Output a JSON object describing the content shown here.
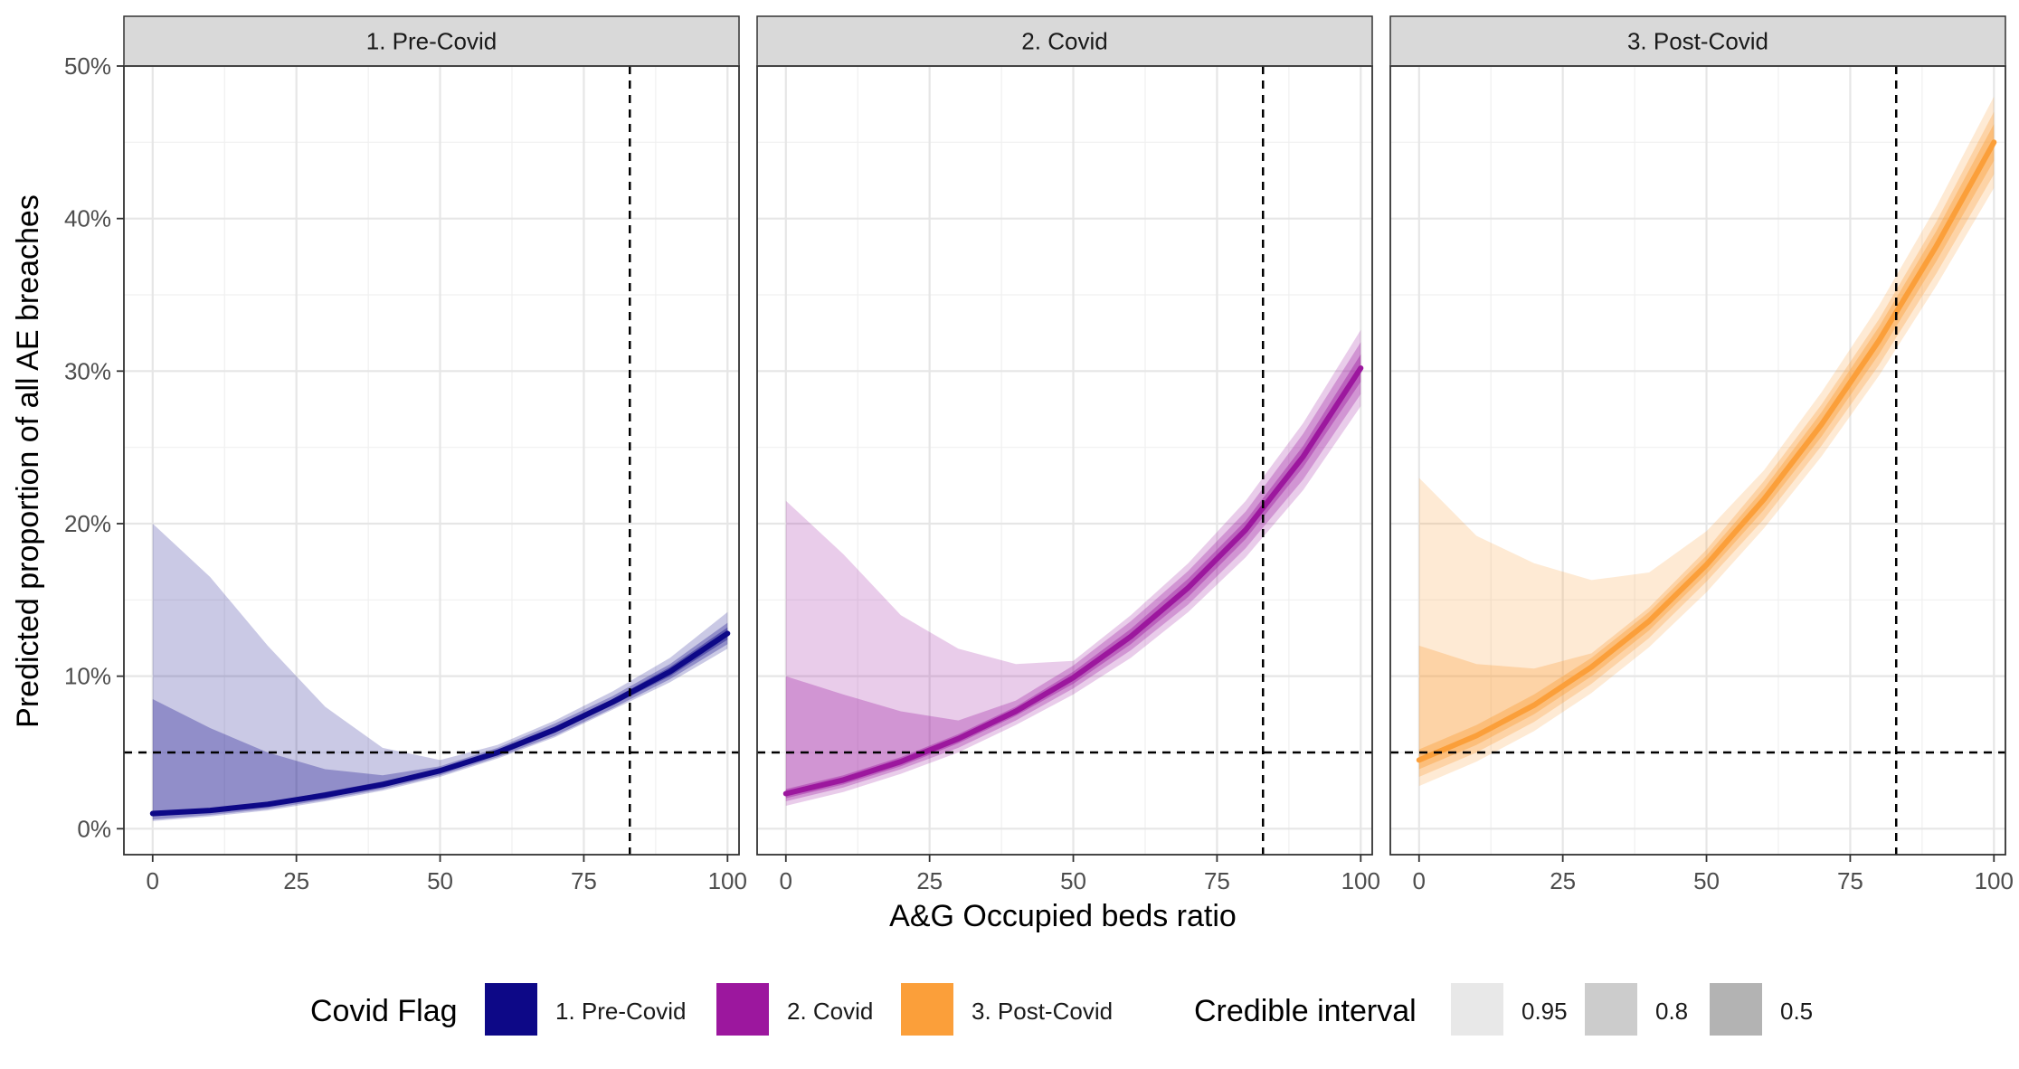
{
  "chart_data": {
    "type": "line",
    "xlabel": "A&G Occupied beds ratio",
    "ylabel": "Predicted proportion of all AE breaches",
    "xlim": [
      -5,
      102
    ],
    "ylim": [
      -1.7,
      50
    ],
    "x_ticks": [
      0,
      25,
      50,
      75,
      100
    ],
    "x_tick_labels": [
      "0",
      "25",
      "50",
      "75",
      "100"
    ],
    "y_ticks": [
      0,
      10,
      20,
      30,
      40,
      50
    ],
    "y_tick_labels": [
      "0%",
      "10%",
      "20%",
      "30%",
      "40%",
      "50%"
    ],
    "grid": true,
    "reference_lines": {
      "vertical_x": 83,
      "horizontal_y": 5
    },
    "facets": [
      {
        "label": "1. Pre-Covid",
        "color": "#0d0887",
        "x": [
          0,
          10,
          20,
          30,
          40,
          50,
          60,
          70,
          80,
          90,
          100
        ],
        "median": [
          1.0,
          1.2,
          1.6,
          2.2,
          2.9,
          3.8,
          5.0,
          6.5,
          8.3,
          10.3,
          12.8
        ],
        "ci50": {
          "lower": [
            0.8,
            1.1,
            1.5,
            2.0,
            2.8,
            3.7,
            4.8,
            6.3,
            8.1,
            10.0,
            12.4
          ],
          "upper": [
            1.1,
            1.3,
            1.7,
            2.4,
            3.1,
            3.9,
            5.2,
            6.7,
            8.5,
            10.6,
            13.2
          ]
        },
        "ci80": {
          "lower": [
            0.6,
            0.9,
            1.3,
            1.9,
            2.6,
            3.5,
            4.7,
            6.1,
            7.9,
            9.8,
            12.1
          ],
          "upper": [
            8.5,
            6.6,
            5.0,
            3.9,
            3.5,
            4.1,
            5.3,
            6.9,
            8.7,
            10.8,
            13.5
          ]
        },
        "ci95": {
          "lower": [
            0.5,
            0.8,
            1.2,
            1.8,
            2.5,
            3.4,
            4.6,
            6.0,
            7.8,
            9.6,
            11.8
          ],
          "upper": [
            20.0,
            16.5,
            12.0,
            8.0,
            5.3,
            4.5,
            5.5,
            7.1,
            9.0,
            11.2,
            14.2
          ]
        }
      },
      {
        "label": "2. Covid",
        "color": "#9c179e",
        "x": [
          0,
          10,
          20,
          30,
          40,
          50,
          60,
          70,
          80,
          90,
          100
        ],
        "median": [
          2.3,
          3.2,
          4.4,
          5.9,
          7.7,
          9.9,
          12.6,
          15.8,
          19.6,
          24.4,
          30.2
        ],
        "ci50": {
          "lower": [
            2.0,
            2.9,
            4.1,
            5.6,
            7.4,
            9.5,
            12.1,
            15.2,
            19.0,
            23.7,
            29.3
          ],
          "upper": [
            2.6,
            3.5,
            4.7,
            6.2,
            8.0,
            10.3,
            13.1,
            16.4,
            20.2,
            25.1,
            31.1
          ]
        },
        "ci80": {
          "lower": [
            1.8,
            2.7,
            3.9,
            5.3,
            7.1,
            9.2,
            11.7,
            14.7,
            18.4,
            22.9,
            28.5
          ],
          "upper": [
            10.0,
            8.8,
            7.7,
            7.1,
            8.4,
            10.7,
            13.6,
            16.9,
            20.8,
            25.9,
            31.9
          ]
        },
        "ci95": {
          "lower": [
            1.5,
            2.4,
            3.6,
            5.0,
            6.8,
            8.8,
            11.2,
            14.2,
            17.8,
            22.2,
            27.7
          ],
          "upper": [
            21.5,
            18.0,
            14.0,
            11.8,
            10.8,
            11.0,
            14.0,
            17.4,
            21.5,
            26.6,
            32.7
          ]
        }
      },
      {
        "label": "3. Post-Covid",
        "color": "#fb9f3a",
        "x": [
          0,
          10,
          20,
          30,
          40,
          50,
          60,
          70,
          80,
          90,
          100
        ],
        "median": [
          4.5,
          6.1,
          8.1,
          10.6,
          13.6,
          17.3,
          21.6,
          26.5,
          32.0,
          38.2,
          45.0
        ],
        "ci50": {
          "lower": [
            3.9,
            5.5,
            7.5,
            10.0,
            13.0,
            16.7,
            20.9,
            25.7,
            31.1,
            37.2,
            43.8
          ],
          "upper": [
            5.2,
            6.8,
            8.8,
            11.2,
            14.2,
            17.9,
            22.3,
            27.3,
            32.9,
            39.2,
            46.2
          ]
        },
        "ci80": {
          "lower": [
            3.4,
            5.0,
            7.0,
            9.5,
            12.5,
            16.2,
            20.3,
            25.1,
            30.4,
            36.4,
            42.9
          ],
          "upper": [
            12.0,
            10.8,
            10.5,
            11.5,
            14.5,
            18.3,
            22.8,
            27.8,
            33.4,
            39.8,
            47.0
          ]
        },
        "ci95": {
          "lower": [
            2.8,
            4.4,
            6.4,
            8.9,
            11.9,
            15.5,
            19.7,
            24.4,
            29.7,
            35.6,
            42.0
          ],
          "upper": [
            23.0,
            19.2,
            17.4,
            16.3,
            16.8,
            19.5,
            23.5,
            28.6,
            34.3,
            40.8,
            48.0
          ]
        }
      }
    ],
    "legend": {
      "placement": "bottom",
      "covid_flag_title": "Covid Flag",
      "covid_flag_items": [
        {
          "label": "1. Pre-Covid",
          "color": "#0d0887"
        },
        {
          "label": "2. Covid",
          "color": "#9c179e"
        },
        {
          "label": "3. Post-Covid",
          "color": "#fb9f3a"
        }
      ],
      "ci_title": "Credible interval",
      "ci_items": [
        {
          "label": "0.95",
          "color": "#e8e8e8"
        },
        {
          "label": "0.8",
          "color": "#cccccc"
        },
        {
          "label": "0.5",
          "color": "#b3b3b3"
        }
      ]
    }
  }
}
